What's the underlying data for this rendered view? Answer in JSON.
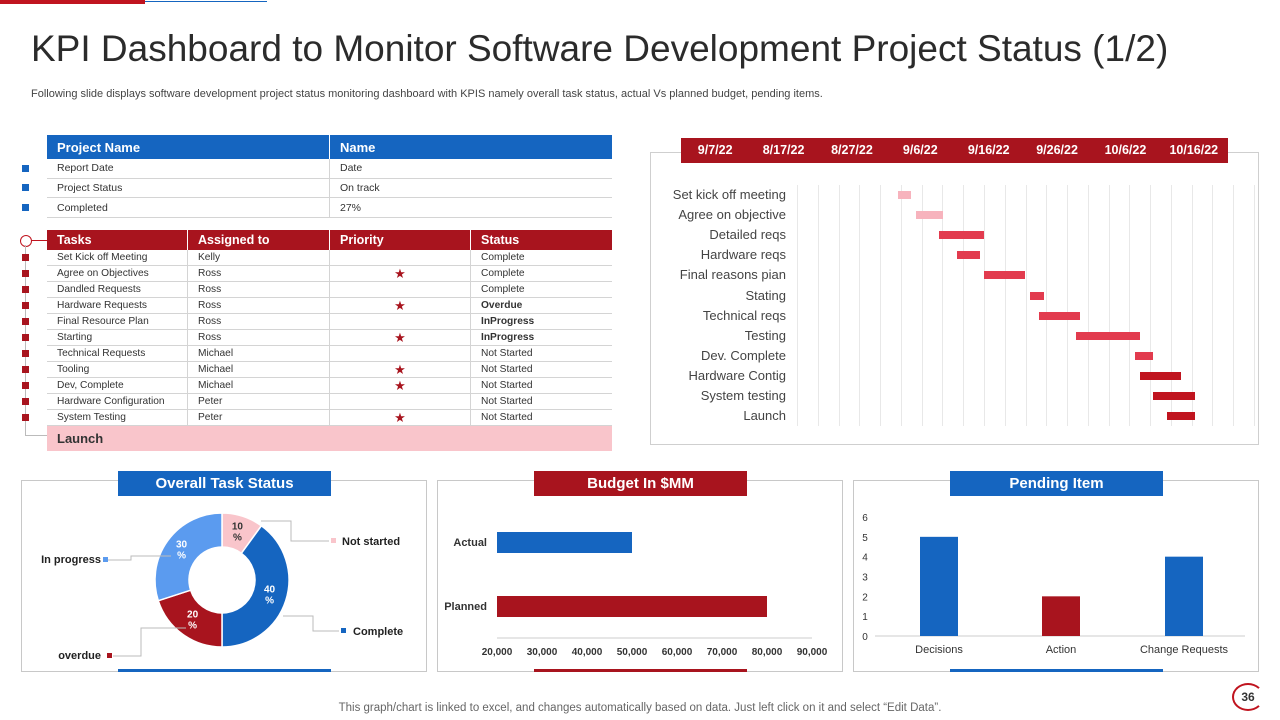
{
  "title": "KPI Dashboard to Monitor Software Development Project Status (1/2)",
  "subtitle": "Following slide displays software development project status monitoring dashboard with KPIS namely overall task status, actual Vs planned budget, pending items.",
  "project": {
    "headers": [
      "Project Name",
      "Name"
    ],
    "rows": [
      [
        "Report Date",
        "Date"
      ],
      [
        "Project Status",
        "On track"
      ],
      [
        "Completed",
        "27%"
      ]
    ]
  },
  "tasks": {
    "headers": [
      "Tasks",
      "Assigned to",
      "Priority",
      "Status"
    ],
    "rows": [
      {
        "task": "Set Kick off Meeting",
        "assigned": "Kelly",
        "priority": "",
        "status": "Complete"
      },
      {
        "task": "Agree on Objectives",
        "assigned": "Ross",
        "priority": "★",
        "status": "Complete"
      },
      {
        "task": "Dandled Requests",
        "assigned": "Ross",
        "priority": "",
        "status": "Complete"
      },
      {
        "task": "Hardware Requests",
        "assigned": "Ross",
        "priority": "★",
        "status": "Overdue"
      },
      {
        "task": "Final Resource Plan",
        "assigned": "Ross",
        "priority": "",
        "status": "InProgress"
      },
      {
        "task": "Starting",
        "assigned": "Ross",
        "priority": "★",
        "status": "InProgress"
      },
      {
        "task": "Technical Requests",
        "assigned": "Michael",
        "priority": "",
        "status": "Not Started"
      },
      {
        "task": "Tooling",
        "assigned": "Michael",
        "priority": "★",
        "status": "Not Started"
      },
      {
        "task": "Dev, Complete",
        "assigned": "Michael",
        "priority": "★",
        "status": "Not Started"
      },
      {
        "task": "Hardware Configuration",
        "assigned": "Peter",
        "priority": "",
        "status": "Not Started"
      },
      {
        "task": "System Testing",
        "assigned": "Peter",
        "priority": "★",
        "status": "Not Started"
      }
    ],
    "footer": "Launch"
  },
  "gantt": {
    "dates": [
      "9/7/22",
      "8/17/22",
      "8/27/22",
      "9/6/22",
      "9/16/22",
      "9/26/22",
      "10/6/22",
      "10/16/22"
    ],
    "tasks": [
      {
        "label": "Set kick off meeting",
        "start": 0.22,
        "end": 0.25,
        "color": "#f7b3bd"
      },
      {
        "label": "Agree on objective",
        "start": 0.26,
        "end": 0.32,
        "color": "#f7b3bd"
      },
      {
        "label": "Detailed reqs",
        "start": 0.31,
        "end": 0.41,
        "color": "#e23b4e"
      },
      {
        "label": "Hardware reqs",
        "start": 0.35,
        "end": 0.4,
        "color": "#e23b4e"
      },
      {
        "label": "Final reasons pian",
        "start": 0.41,
        "end": 0.5,
        "color": "#e23b4e"
      },
      {
        "label": "Stating",
        "start": 0.51,
        "end": 0.54,
        "color": "#e23b4e"
      },
      {
        "label": "Technical reqs",
        "start": 0.53,
        "end": 0.62,
        "color": "#e23b4e"
      },
      {
        "label": "Testing",
        "start": 0.61,
        "end": 0.75,
        "color": "#e23b4e"
      },
      {
        "label": "Dev. Complete",
        "start": 0.74,
        "end": 0.78,
        "color": "#e23b4e"
      },
      {
        "label": "Hardware Contig",
        "start": 0.75,
        "end": 0.84,
        "color": "#c0141f"
      },
      {
        "label": "System testing",
        "start": 0.78,
        "end": 0.87,
        "color": "#c0141f"
      },
      {
        "label": "Launch",
        "start": 0.81,
        "end": 0.87,
        "color": "#c0141f"
      }
    ]
  },
  "chart_data": [
    {
      "type": "pie",
      "title": "Overall Task Status",
      "categories": [
        "Not started",
        "Complete",
        "overdue",
        "In progress"
      ],
      "values": [
        10,
        40,
        20,
        30
      ],
      "value_labels": [
        "10\n%",
        "40\n%",
        "20\n%",
        "30\n%"
      ],
      "colors": [
        "#f9c5cb",
        "#1565c0",
        "#a8141e",
        "#5b9bef"
      ]
    },
    {
      "type": "bar",
      "orientation": "horizontal",
      "title": "Budget In $MM",
      "categories": [
        "Actual",
        "Planned"
      ],
      "values": [
        50000,
        80000
      ],
      "colors": [
        "#1565c0",
        "#a8141e"
      ],
      "xlim": [
        20000,
        90000
      ],
      "xticks": [
        "20,000",
        "30,000",
        "40,000",
        "50,000",
        "60,000",
        "70,000",
        "80,000",
        "90,000"
      ]
    },
    {
      "type": "bar",
      "title": "Pending Item",
      "categories": [
        "Decisions",
        "Action",
        "Change Requests"
      ],
      "values": [
        5,
        2,
        4
      ],
      "colors": [
        "#1565c0",
        "#a8141e",
        "#1565c0"
      ],
      "ylim": [
        0,
        6
      ],
      "yticks": [
        "0",
        "1",
        "2",
        "3",
        "4",
        "5",
        "6"
      ]
    }
  ],
  "footnote": "This graph/chart is linked to excel,  and changes automatically based on data. Just left click on it and select “Edit Data”.",
  "page_number": "36",
  "colors": {
    "accent_red": "#a8141e",
    "accent_blue": "#1565c0"
  }
}
